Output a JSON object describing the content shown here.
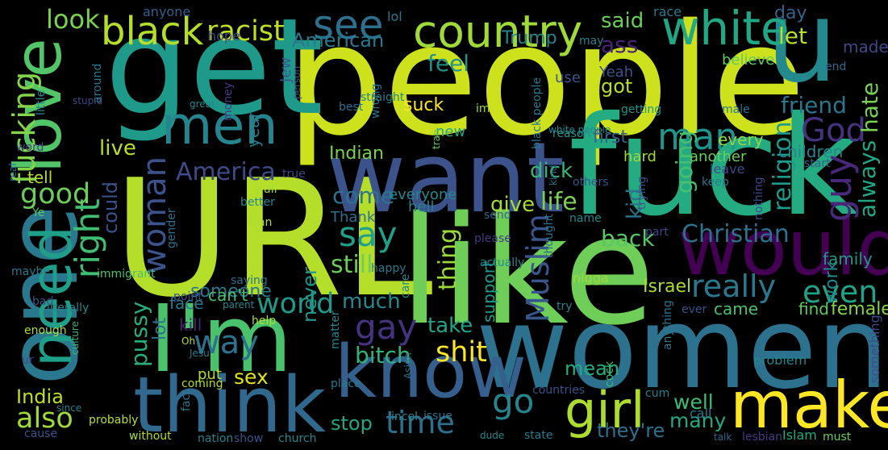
{
  "words": [
    {
      "text": "people",
      "color": "#cde11d"
    },
    {
      "text": "URL",
      "color": "#b5de2b"
    },
    {
      "text": "like",
      "color": "#6ece58"
    },
    {
      "text": "get",
      "color": "#1f9a8a"
    },
    {
      "text": "fuck",
      "color": "#25ab82"
    },
    {
      "text": "women",
      "color": "#2c728e"
    },
    {
      "text": "want",
      "color": "#3b528b"
    },
    {
      "text": "one",
      "color": "#2a788e"
    },
    {
      "text": "u",
      "color": "#23898e"
    },
    {
      "text": "I'm",
      "color": "#4ac16d"
    },
    {
      "text": "would",
      "color": "#440154"
    },
    {
      "text": "think",
      "color": "#31688e"
    },
    {
      "text": "know",
      "color": "#35608d"
    },
    {
      "text": "make",
      "color": "#fde725"
    },
    {
      "text": "love",
      "color": "#52c569"
    },
    {
      "text": "need",
      "color": "#1f9e89"
    },
    {
      "text": "men",
      "color": "#25858e"
    },
    {
      "text": "girl",
      "color": "#addc30"
    },
    {
      "text": "country",
      "color": "#a0da39"
    },
    {
      "text": "white",
      "color": "#22a785"
    },
    {
      "text": "black",
      "color": "#b5de2b"
    },
    {
      "text": "see",
      "color": "#2d708e"
    },
    {
      "text": "racist",
      "color": "#bddf26"
    },
    {
      "text": "look",
      "color": "#7ad151"
    },
    {
      "text": "man",
      "color": "#1f948c"
    },
    {
      "text": "God",
      "color": "#46327e"
    },
    {
      "text": "woman",
      "color": "#3b528b"
    },
    {
      "text": "fucking",
      "color": "#84d44b"
    },
    {
      "text": "right",
      "color": "#40bd72"
    },
    {
      "text": "say",
      "color": "#1fa088"
    },
    {
      "text": "guy",
      "color": "#482878"
    },
    {
      "text": "really",
      "color": "#2a788e"
    },
    {
      "text": "even",
      "color": "#20a386"
    },
    {
      "text": "way",
      "color": "#2c728e"
    },
    {
      "text": "gay",
      "color": "#46337f"
    },
    {
      "text": "world",
      "color": "#1f9a8a"
    },
    {
      "text": "time",
      "color": "#2d708e"
    },
    {
      "text": "go",
      "color": "#25858e"
    },
    {
      "text": "shit",
      "color": "#fde725"
    },
    {
      "text": "also",
      "color": "#9fda3a"
    },
    {
      "text": "good",
      "color": "#6ccd5a"
    },
    {
      "text": "America",
      "color": "#3e4a89"
    },
    {
      "text": "Christian",
      "color": "#2d718e"
    },
    {
      "text": "Muslim",
      "color": "#39568c"
    },
    {
      "text": "religion",
      "color": "#1e9b8a"
    },
    {
      "text": "life",
      "color": "#7ad151"
    },
    {
      "text": "thing",
      "color": "#9dd93b"
    },
    {
      "text": "still",
      "color": "#6ccd5a"
    },
    {
      "text": "come",
      "color": "#2c738e"
    },
    {
      "text": "back",
      "color": "#58c765"
    },
    {
      "text": "hate",
      "color": "#77d153"
    },
    {
      "text": "friend",
      "color": "#2a768e"
    },
    {
      "text": "going",
      "color": "#46c06f"
    },
    {
      "text": "American",
      "color": "#2a788e"
    },
    {
      "text": "feel",
      "color": "#20928c"
    },
    {
      "text": "let",
      "color": "#b8de29"
    },
    {
      "text": "day",
      "color": "#33638d"
    },
    {
      "text": "said",
      "color": "#6ccd5a"
    },
    {
      "text": "ass",
      "color": "#482475"
    },
    {
      "text": "got",
      "color": "#b5de2b"
    },
    {
      "text": "Trump",
      "color": "#25858e"
    },
    {
      "text": "bitch",
      "color": "#2fb47c"
    },
    {
      "text": "pussy",
      "color": "#27ad81"
    },
    {
      "text": "take",
      "color": "#20a386"
    },
    {
      "text": "much",
      "color": "#23898e"
    },
    {
      "text": "many",
      "color": "#22a884"
    },
    {
      "text": "mean",
      "color": "#25ac82"
    },
    {
      "text": "stop",
      "color": "#22a785"
    },
    {
      "text": "well",
      "color": "#3dbc74"
    },
    {
      "text": "they're",
      "color": "#2d708e"
    },
    {
      "text": "sex",
      "color": "#e2e418"
    },
    {
      "text": "India",
      "color": "#bddf26"
    },
    {
      "text": "dick",
      "color": "#35b779"
    },
    {
      "text": "give",
      "color": "#a2da37"
    },
    {
      "text": "could",
      "color": "#3b528b"
    },
    {
      "text": "live",
      "color": "#b8de29"
    },
    {
      "text": "always",
      "color": "#22a785"
    },
    {
      "text": "kid",
      "color": "#2c738e"
    },
    {
      "text": "first",
      "color": "#34618d"
    },
    {
      "text": "never",
      "color": "#1f968b"
    },
    {
      "text": "someone",
      "color": "#2a768e"
    },
    {
      "text": "lot",
      "color": "#2d708e"
    },
    {
      "text": "can't",
      "color": "#46c06f"
    },
    {
      "text": "support",
      "color": "#1e9b8a"
    },
    {
      "text": "family",
      "color": "#1f9a8a"
    },
    {
      "text": "work",
      "color": "#24878e"
    },
    {
      "text": "female",
      "color": "#84d44b"
    },
    {
      "text": "find",
      "color": "#5ec962"
    },
    {
      "text": "came",
      "color": "#4ac16d"
    },
    {
      "text": "Israel",
      "color": "#addc30"
    },
    {
      "text": "children",
      "color": "#25848e"
    },
    {
      "text": "every",
      "color": "#8fd744"
    },
    {
      "text": "another",
      "color": "#6ccd5a"
    },
    {
      "text": "hard",
      "color": "#9fda3a"
    },
    {
      "text": "suck",
      "color": "#fde725"
    },
    {
      "text": "new",
      "color": "#22a785"
    },
    {
      "text": "Indian",
      "color": "#7ad151"
    },
    {
      "text": "Jew",
      "color": "#39568c"
    },
    {
      "text": "year",
      "color": "#287c8e"
    },
    {
      "text": "face",
      "color": "#2a788e"
    },
    {
      "text": "kill",
      "color": "#482475"
    },
    {
      "text": "put",
      "color": "#b5de2b"
    },
    {
      "text": "tell",
      "color": "#b5de2b"
    },
    {
      "text": "everyone",
      "color": "#24878e"
    },
    {
      "text": "Thank",
      "color": "#2d708e"
    },
    {
      "text": "hell",
      "color": "#26828e"
    },
    {
      "text": "send",
      "color": "#34618d"
    },
    {
      "text": "y'all",
      "color": "#a8db34"
    },
    {
      "text": "Yeah",
      "color": "#3b528b"
    },
    {
      "text": "use",
      "color": "#3b528b"
    },
    {
      "text": "made",
      "color": "#404688"
    },
    {
      "text": "believe",
      "color": "#5ec962"
    },
    {
      "text": "race",
      "color": "#2a788e"
    },
    {
      "text": "hope",
      "color": "#3e4a89"
    },
    {
      "text": "anyone",
      "color": "#355f8d"
    },
    {
      "text": "lol",
      "color": "#2a788e"
    },
    {
      "text": "may",
      "color": "#26828e"
    },
    {
      "text": "end",
      "color": "#31688e"
    },
    {
      "text": "male",
      "color": "#2a788e"
    },
    {
      "text": "getting",
      "color": "#1f968b"
    },
    {
      "text": "reason",
      "color": "#1f948c"
    },
    {
      "text": "start",
      "color": "#35608d"
    },
    {
      "text": "nothing",
      "color": "#3e4a89"
    },
    {
      "text": "keep",
      "color": "#2a768e"
    },
    {
      "text": "trying",
      "color": "#3b528b"
    },
    {
      "text": "name",
      "color": "#24878e"
    },
    {
      "text": "part",
      "color": "#404688"
    },
    {
      "text": "thought",
      "color": "#2d708e"
    },
    {
      "text": "please",
      "color": "#443a83"
    },
    {
      "text": "nigga",
      "color": "#9fda3a"
    },
    {
      "text": "try",
      "color": "#26828e"
    },
    {
      "text": "ever",
      "color": "#3b528b"
    },
    {
      "text": "problem",
      "color": "#24878e"
    },
    {
      "text": "cock",
      "color": "#3dbc74"
    },
    {
      "text": "anything",
      "color": "#2a788e"
    },
    {
      "text": "cum",
      "color": "#26828e"
    },
    {
      "text": "call",
      "color": "#2a788e"
    },
    {
      "text": "talk",
      "color": "#31688e"
    },
    {
      "text": "lesbian",
      "color": "#443a83"
    },
    {
      "text": "Islam",
      "color": "#22a785"
    },
    {
      "text": "must",
      "color": "#6ccd5a"
    },
    {
      "text": "something",
      "color": "#3e4a89"
    },
    {
      "text": "state",
      "color": "#2a788e"
    },
    {
      "text": "dude",
      "color": "#24878e"
    },
    {
      "text": "issue",
      "color": "#2d708e"
    },
    {
      "text": "countries",
      "color": "#3b528b"
    },
    {
      "text": "incel",
      "color": "#26828e"
    },
    {
      "text": "church",
      "color": "#23898e"
    },
    {
      "text": "show",
      "color": "#3b528b"
    },
    {
      "text": "nation",
      "color": "#26828e"
    },
    {
      "text": "fact",
      "color": "#2a788e"
    },
    {
      "text": "without",
      "color": "#addc30"
    },
    {
      "text": "cause",
      "color": "#3b528b"
    },
    {
      "text": "probably",
      "color": "#b5de2b"
    },
    {
      "text": "since",
      "color": "#24878e"
    },
    {
      "text": "coming",
      "color": "#b5de2b"
    },
    {
      "text": "place",
      "color": "#2a788e"
    },
    {
      "text": "Asian",
      "color": "#2d708e"
    },
    {
      "text": "matter",
      "color": "#24878e"
    },
    {
      "text": "help",
      "color": "#b5de2b"
    },
    {
      "text": "Oh",
      "color": "#bddf26"
    },
    {
      "text": "Jesu",
      "color": "#2a788e"
    },
    {
      "text": "parent",
      "color": "#24878e"
    },
    {
      "text": "point",
      "color": "#3b528b"
    },
    {
      "text": "saying",
      "color": "#2d708e"
    },
    {
      "text": "happy",
      "color": "#2a788e"
    },
    {
      "text": "care",
      "color": "#24878e"
    },
    {
      "text": "actually",
      "color": "#24878e"
    },
    {
      "text": "ur",
      "color": "#404688"
    },
    {
      "text": "enough",
      "color": "#addc30"
    },
    {
      "text": "culture",
      "color": "#35b779"
    },
    {
      "text": "literally",
      "color": "#24878e"
    },
    {
      "text": "bad",
      "color": "#3b528b"
    },
    {
      "text": "maybe",
      "color": "#2a788e"
    },
    {
      "text": "immigrant",
      "color": "#4ac16d"
    },
    {
      "text": "Ye",
      "color": "#5ec962"
    },
    {
      "text": "real",
      "color": "#2a788e"
    },
    {
      "text": "word",
      "color": "#404688"
    },
    {
      "text": "stupid",
      "color": "#3e4a89"
    },
    {
      "text": "little",
      "color": "#24878e"
    },
    {
      "text": "around",
      "color": "#2a788e"
    },
    {
      "text": "great",
      "color": "#24878e"
    },
    {
      "text": "money",
      "color": "#443a83"
    },
    {
      "text": "person",
      "color": "#3b528b"
    },
    {
      "text": "best",
      "color": "#2d708e"
    },
    {
      "text": "wrong",
      "color": "#2a788e"
    },
    {
      "text": "straight",
      "color": "#26828e"
    },
    {
      "text": "im",
      "color": "#9fda3a"
    },
    {
      "text": "tran",
      "color": "#6ccd5a"
    },
    {
      "text": "black people",
      "color": "#2a788e"
    },
    {
      "text": "white people",
      "color": "#24878e"
    },
    {
      "text": "kind",
      "color": "#2d708e"
    },
    {
      "text": "others",
      "color": "#3b528b"
    },
    {
      "text": "true",
      "color": "#404688"
    },
    {
      "text": "leave",
      "color": "#3e4a89"
    },
    {
      "text": "gender",
      "color": "#2d708e"
    },
    {
      "text": "Iran",
      "color": "#addc30"
    },
    {
      "text": "better",
      "color": "#24878e"
    },
    {
      "text": "boy",
      "color": "#2a788e"
    },
    {
      "text": "bi",
      "color": "#bddf26"
    }
  ]
}
